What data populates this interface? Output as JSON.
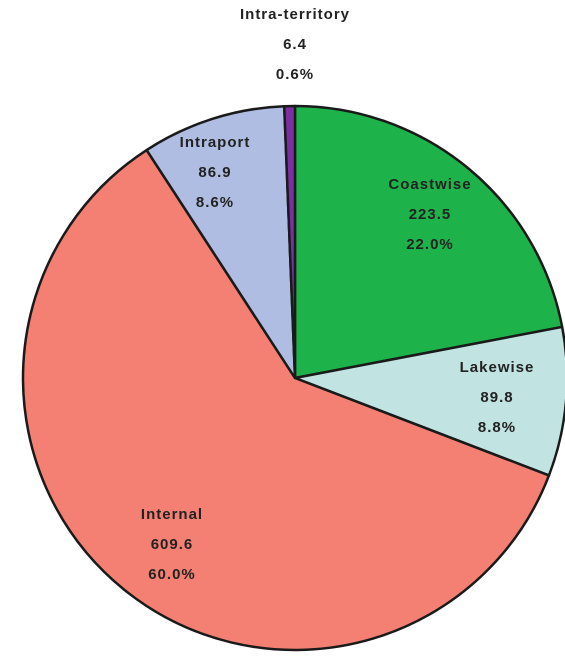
{
  "chart_data": {
    "type": "pie",
    "categories": [
      "Coastwise",
      "Lakewise",
      "Internal",
      "Intraport",
      "Intra-territory"
    ],
    "values": [
      223.5,
      89.8,
      609.6,
      86.9,
      6.4
    ],
    "percents": [
      22.0,
      8.8,
      60.0,
      8.6,
      0.6
    ],
    "percent_labels": [
      "22.0%",
      "8.8%",
      "60.0%",
      "8.6%",
      "0.6%"
    ],
    "colors": [
      "#1db34a",
      "#c1e3e1",
      "#f48073",
      "#aebde1",
      "#7b2fa3"
    ]
  }
}
